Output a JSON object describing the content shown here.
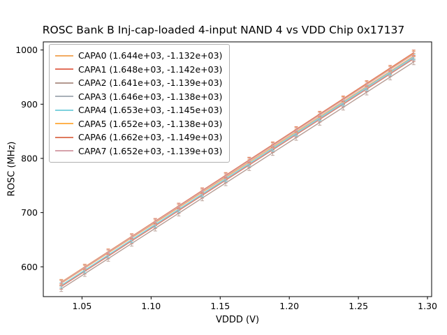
{
  "figure": {
    "title": "ROSC Bank B Inj-cap-loaded 4-input NAND 4 vs VDD Chip 0x17137",
    "xlabel": "VDDD (V)",
    "ylabel": "ROSC (MHz)"
  },
  "chart_data": {
    "type": "line",
    "title": "ROSC Bank B Inj-cap-loaded 4-input NAND 4 vs VDD Chip 0x17137",
    "xlabel": "VDDD (V)",
    "ylabel": "ROSC (MHz)",
    "xlim": [
      1.022,
      1.303
    ],
    "ylim": [
      545,
      1015
    ],
    "x_ticks": [
      1.05,
      1.1,
      1.15,
      1.2,
      1.25,
      1.3
    ],
    "y_ticks": [
      600,
      700,
      800,
      900,
      1000
    ],
    "grid": false,
    "legend_position": "upper left",
    "errorbar_mhz": 5,
    "fit_model": "ROSC_MHz = slope * VDDD + intercept",
    "x": [
      1.035,
      1.052,
      1.069,
      1.086,
      1.103,
      1.12,
      1.137,
      1.154,
      1.171,
      1.188,
      1.205,
      1.222,
      1.239,
      1.256,
      1.273,
      1.29
    ],
    "series": [
      {
        "name": "CAPA0",
        "label": "CAPA0 (1.644e+03, -1.132e+03)",
        "slope": 1644,
        "intercept": -1132,
        "color": "#f2ab62"
      },
      {
        "name": "CAPA1",
        "label": "CAPA1 (1.648e+03, -1.142e+03)",
        "slope": 1648,
        "intercept": -1142,
        "color": "#e2705c"
      },
      {
        "name": "CAPA2",
        "label": "CAPA2 (1.641e+03, -1.139e+03)",
        "slope": 1641,
        "intercept": -1139,
        "color": "#b3988f"
      },
      {
        "name": "CAPA3",
        "label": "CAPA3 (1.646e+03, -1.138e+03)",
        "slope": 1646,
        "intercept": -1138,
        "color": "#a8b0b8"
      },
      {
        "name": "CAPA4",
        "label": "CAPA4 (1.653e+03, -1.145e+03)",
        "slope": 1653,
        "intercept": -1145,
        "color": "#7ed2de"
      },
      {
        "name": "CAPA5",
        "label": "CAPA5 (1.652e+03, -1.138e+03)",
        "slope": 1652,
        "intercept": -1138,
        "color": "#ffb24d"
      },
      {
        "name": "CAPA6",
        "label": "CAPA6 (1.662e+03, -1.149e+03)",
        "slope": 1662,
        "intercept": -1149,
        "color": "#df7a5e"
      },
      {
        "name": "CAPA7",
        "label": "CAPA7 (1.652e+03, -1.139e+03)",
        "slope": 1652,
        "intercept": -1139,
        "color": "#d6a2ab"
      }
    ]
  }
}
